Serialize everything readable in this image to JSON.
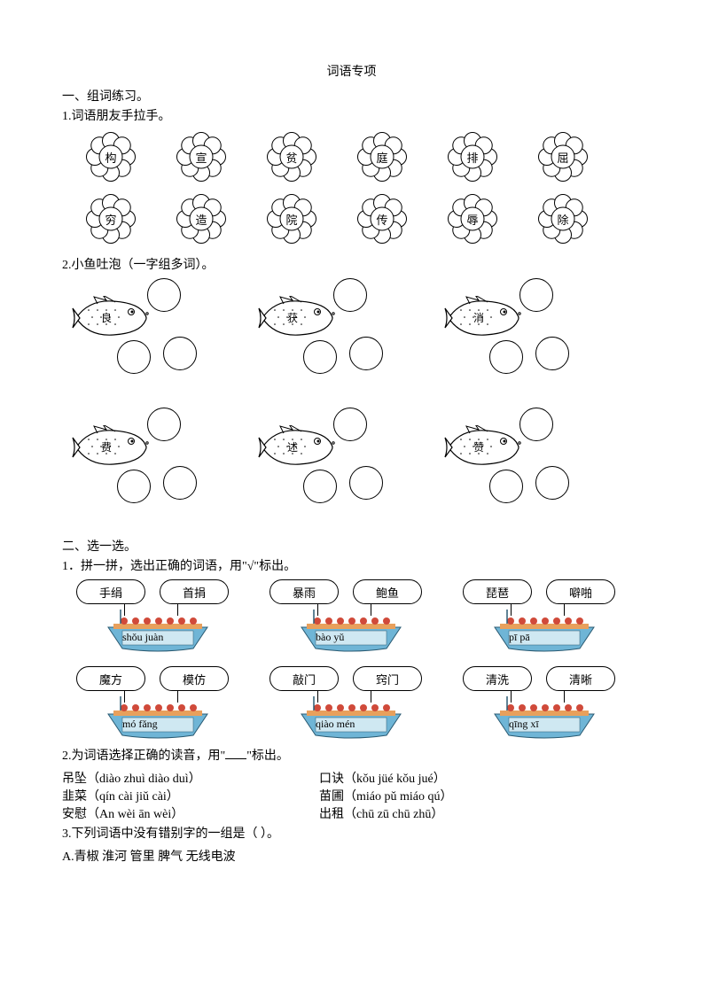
{
  "title": "词语专项",
  "section1": {
    "heading": "一、组词练习。",
    "q1": {
      "heading": "1.词语朋友手拉手。",
      "row1": [
        "构",
        "宣",
        "贫",
        "庭",
        "排",
        "屈"
      ],
      "row2": [
        "穷",
        "造",
        "院",
        "传",
        "辱",
        "除"
      ]
    },
    "q2": {
      "heading": "2.小鱼吐泡（一字组多词）。",
      "row1": [
        "良",
        "获",
        "消"
      ],
      "row2": [
        "费",
        "述",
        "赞"
      ]
    }
  },
  "section2": {
    "heading": "二、选一选。",
    "q1": {
      "heading": "1．拼一拼，选出正确的词语，用\"√\"标出。",
      "boats": [
        {
          "left": "手绢",
          "right": "首捐",
          "pinyin": "shǒu juàn"
        },
        {
          "left": "暴雨",
          "right": "鲍鱼",
          "pinyin": "bào yǔ"
        },
        {
          "left": "琵琶",
          "right": "噼啪",
          "pinyin": "pī pā"
        },
        {
          "left": "魔方",
          "right": "模仿",
          "pinyin": "mó fǎng"
        },
        {
          "left": "敲门",
          "right": "窍门",
          "pinyin": "qiào mén"
        },
        {
          "left": "清洗",
          "right": "清晰",
          "pinyin": "qīng xī"
        }
      ]
    },
    "q2": {
      "heading_prefix": "2.为词语选择正确的读音，用\"",
      "heading_suffix": "\"标出。",
      "lines": [
        {
          "left_word": "吊坠",
          "left_opts": "（diào zhuì   diào duì）",
          "right_word": "口诀",
          "right_opts": "（kǒu jüé   kǒu jué）"
        },
        {
          "left_word": "韭菜",
          "left_opts": "（qín cài   jiǔ cài）",
          "right_word": "苗圃",
          "right_opts": "（miáo pǔ   miáo qú）"
        },
        {
          "left_word": "安慰",
          "left_opts": "（An wèi   ān wèi）",
          "right_word": "出租",
          "right_opts": "（chū zū   chū zhū）"
        }
      ]
    },
    "q3": {
      "heading": "3.下列词语中没有错别字的一组是（    ）。",
      "optA": "A.青椒    淮河    管里    脾气    无线电波"
    }
  },
  "colors": {
    "boat_hull": "#6fb5d6",
    "boat_deck": "#e8a05c",
    "boat_cargo": "#d04a3a",
    "black": "#000000",
    "white": "#ffffff"
  }
}
